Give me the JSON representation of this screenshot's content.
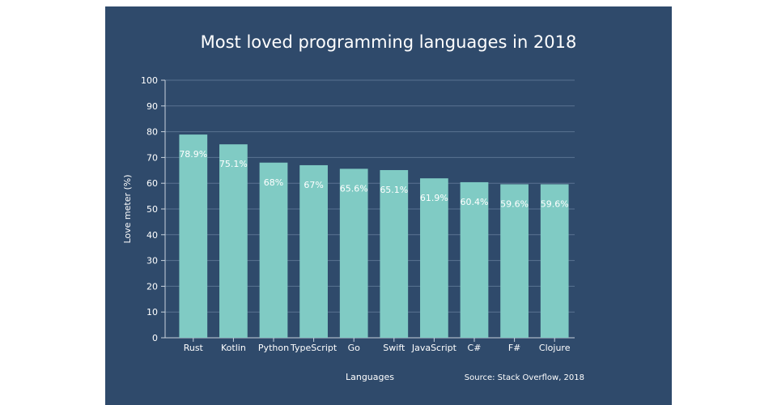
{
  "chart_data": {
    "type": "bar",
    "title": "Most loved programming languages in 2018",
    "xlabel": "Languages",
    "ylabel": "Love meter (%)",
    "categories": [
      "Rust",
      "Kotlin",
      "Python",
      "TypeScript",
      "Go",
      "Swift",
      "JavaScript",
      "C#",
      "F#",
      "Clojure"
    ],
    "values": [
      78.9,
      75.1,
      68,
      67,
      65.6,
      65.1,
      61.9,
      60.4,
      59.6,
      59.6
    ],
    "data_labels": [
      "78.9%",
      "75.1%",
      "68%",
      "67%",
      "65.6%",
      "65.1%",
      "61.9%",
      "60.4%",
      "59.6%",
      "59.6%"
    ],
    "ylim": [
      0,
      100
    ],
    "yticks": [
      0,
      10,
      20,
      30,
      40,
      50,
      60,
      70,
      80,
      90,
      100
    ],
    "grid": true,
    "source": "Source: Stack Overflow, 2018",
    "colors": {
      "background": "#2f4a6b",
      "bar": "#80cbc4",
      "text": "#ffffff",
      "grid": "#5a7391",
      "data_label": "#ffffff"
    }
  }
}
